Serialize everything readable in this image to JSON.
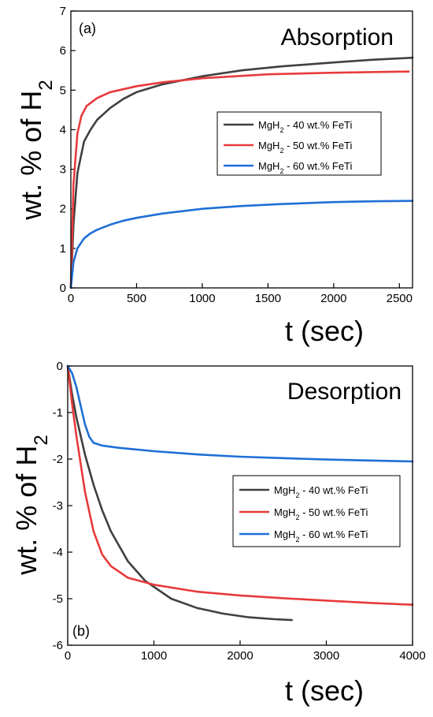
{
  "chart_data": [
    {
      "type": "line",
      "panel_label": "(a)",
      "title": "Absorption",
      "xlabel": "t (sec)",
      "ylabel": "wt. % of H2",
      "xlim": [
        0,
        2600
      ],
      "ylim": [
        0,
        7
      ],
      "xticks": [
        0,
        500,
        1000,
        1500,
        2000,
        2500
      ],
      "yticks": [
        0,
        1,
        2,
        3,
        4,
        5,
        6,
        7
      ],
      "legend_position": "center-right",
      "series": [
        {
          "name": "MgH2 - 40 wt.% FeTi",
          "color": "#404040",
          "x": [
            0,
            20,
            50,
            100,
            150,
            200,
            300,
            400,
            500,
            700,
            1000,
            1300,
            1600,
            2000,
            2300,
            2600
          ],
          "y": [
            0,
            1.6,
            2.9,
            3.7,
            4.0,
            4.25,
            4.55,
            4.78,
            4.95,
            5.15,
            5.35,
            5.5,
            5.6,
            5.7,
            5.77,
            5.82
          ]
        },
        {
          "name": "MgH2 - 50 wt.% FeTi",
          "color": "#e83a3a",
          "x": [
            0,
            20,
            50,
            80,
            120,
            200,
            300,
            500,
            700,
            1000,
            1500,
            2000,
            2570
          ],
          "y": [
            0,
            2.6,
            3.9,
            4.35,
            4.6,
            4.8,
            4.95,
            5.1,
            5.2,
            5.3,
            5.4,
            5.44,
            5.47
          ]
        },
        {
          "name": "MgH2 - 60 wt.% FeTi",
          "color": "#1f6fd6",
          "x": [
            0,
            20,
            50,
            100,
            150,
            200,
            300,
            400,
            500,
            700,
            1000,
            1300,
            1600,
            2000,
            2300,
            2600
          ],
          "y": [
            0,
            0.65,
            1.0,
            1.25,
            1.38,
            1.47,
            1.6,
            1.7,
            1.77,
            1.88,
            2.0,
            2.07,
            2.12,
            2.17,
            2.19,
            2.2
          ]
        }
      ]
    },
    {
      "type": "line",
      "panel_label": "(b)",
      "title": "Desorption",
      "xlabel": "t (sec)",
      "ylabel": "wt. % of H2",
      "xlim": [
        0,
        4000
      ],
      "ylim": [
        -6,
        0
      ],
      "xticks": [
        0,
        1000,
        2000,
        3000,
        4000
      ],
      "yticks": [
        0,
        -1,
        -2,
        -3,
        -4,
        -5,
        -6
      ],
      "legend_position": "center-right",
      "series": [
        {
          "name": "MgH2 - 40 wt.% FeTi",
          "color": "#404040",
          "x": [
            0,
            50,
            100,
            200,
            300,
            400,
            500,
            700,
            900,
            1200,
            1500,
            1800,
            2100,
            2400,
            2600
          ],
          "y": [
            0,
            -0.6,
            -1.1,
            -1.9,
            -2.55,
            -3.1,
            -3.55,
            -4.2,
            -4.62,
            -5.0,
            -5.2,
            -5.32,
            -5.4,
            -5.44,
            -5.46
          ]
        },
        {
          "name": "MgH2 - 50 wt.% FeTi",
          "color": "#e83a3a",
          "x": [
            0,
            50,
            100,
            200,
            300,
            400,
            500,
            700,
            1000,
            1500,
            2000,
            2500,
            3000,
            3500,
            4000
          ],
          "y": [
            0,
            -0.8,
            -1.5,
            -2.7,
            -3.55,
            -4.05,
            -4.3,
            -4.55,
            -4.7,
            -4.85,
            -4.93,
            -4.99,
            -5.04,
            -5.09,
            -5.13
          ]
        },
        {
          "name": "MgH2 - 60 wt.% FeTi",
          "color": "#1f6fd6",
          "x": [
            0,
            50,
            100,
            150,
            200,
            250,
            300,
            400,
            600,
            1000,
            1500,
            2000,
            2500,
            3000,
            3500,
            4000
          ],
          "y": [
            0,
            -0.15,
            -0.45,
            -0.85,
            -1.25,
            -1.52,
            -1.65,
            -1.71,
            -1.76,
            -1.83,
            -1.9,
            -1.95,
            -1.98,
            -2.01,
            -2.03,
            -2.05
          ]
        }
      ]
    }
  ]
}
